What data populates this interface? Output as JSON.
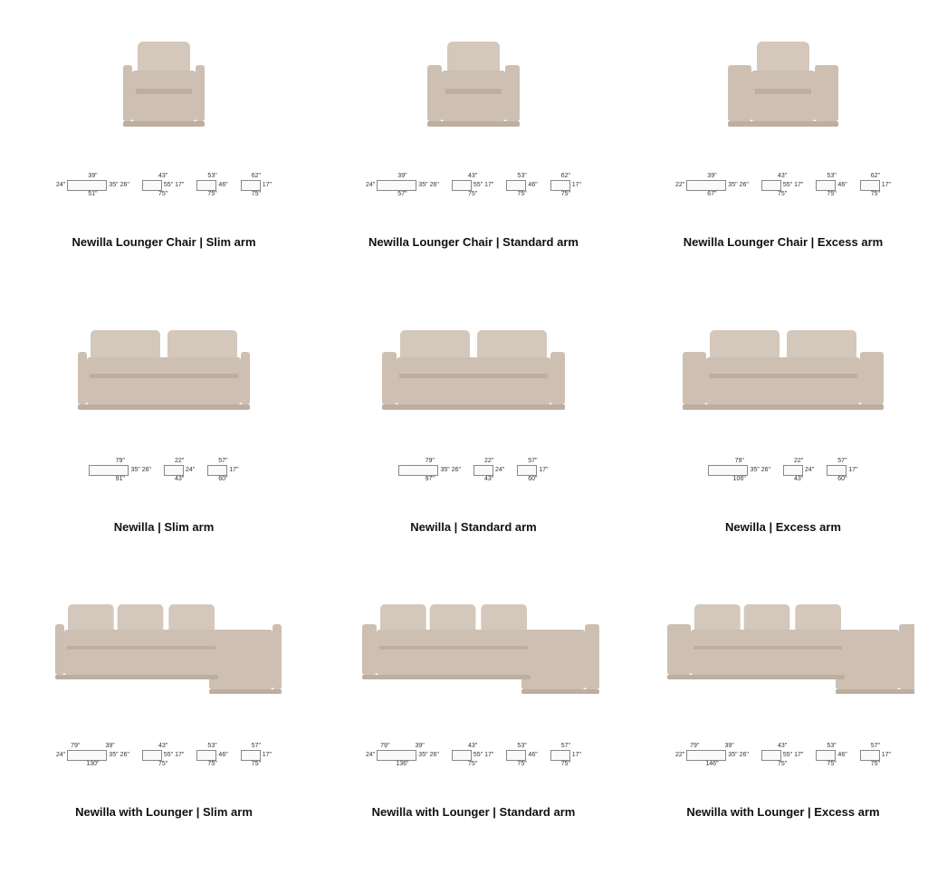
{
  "colors": {
    "sofa_body": "#cdbfb2",
    "sofa_shadow": "#bdaea0",
    "sofa_cushion": "#d4c7bb",
    "background": "#ffffff",
    "text": "#111111",
    "dim_text": "#333333",
    "dim_line": "#888888"
  },
  "layout": {
    "grid_cols": 3,
    "grid_rows": 3
  },
  "products": [
    {
      "title": "Newilla Lounger Chair | Slim arm",
      "kind": "chair",
      "arm": "slim",
      "dims": [
        {
          "top": "39\"",
          "left": "24\"",
          "right": "35\"",
          "bottom": "51\"",
          "extra": "26\""
        },
        {
          "top": "43\"",
          "right": "55\"",
          "left2": "",
          "bottom": "75\"",
          "left": "",
          "extra": "17\""
        },
        {
          "top": "53\"",
          "right": "46\"",
          "bottom": "75\""
        },
        {
          "top": "62\"",
          "right": "17\"",
          "bottom": "75\""
        }
      ]
    },
    {
      "title": "Newilla Lounger Chair | Standard arm",
      "kind": "chair",
      "arm": "standard",
      "dims": [
        {
          "top": "39\"",
          "left": "24\"",
          "right": "35\"",
          "bottom": "57\"",
          "extra": "26\""
        },
        {
          "top": "43\"",
          "right": "55\"",
          "bottom": "75\"",
          "extra": "17\""
        },
        {
          "top": "53\"",
          "right": "46\"",
          "bottom": "75\""
        },
        {
          "top": "62\"",
          "right": "17\"",
          "bottom": "75\""
        }
      ]
    },
    {
      "title": "Newilla Lounger Chair | Excess arm",
      "kind": "chair",
      "arm": "excess",
      "dims": [
        {
          "top": "39\"",
          "left": "22\"",
          "right": "35\"",
          "bottom": "67\"",
          "extra": "26\""
        },
        {
          "top": "43\"",
          "right": "55\"",
          "bottom": "75\"",
          "extra": "17\""
        },
        {
          "top": "53\"",
          "right": "46\"",
          "bottom": "75\""
        },
        {
          "top": "62\"",
          "right": "17\"",
          "bottom": "75\""
        }
      ]
    },
    {
      "title": "Newilla | Slim arm",
      "kind": "sofa",
      "arm": "slim",
      "dims": [
        {
          "top": "79\"",
          "right": "35\"",
          "bottom": "91\"",
          "extra": "26\""
        },
        {
          "top": "22\"",
          "right": "24\"",
          "bottom": "43\""
        },
        {
          "top": "57\"",
          "right": "17\"",
          "bottom": "60\""
        }
      ]
    },
    {
      "title": "Newilla | Standard arm",
      "kind": "sofa",
      "arm": "standard",
      "dims": [
        {
          "top": "79\"",
          "right": "35\"",
          "bottom": "97\"",
          "extra": "26\""
        },
        {
          "top": "22\"",
          "right": "24\"",
          "bottom": "43\""
        },
        {
          "top": "57\"",
          "right": "17\"",
          "bottom": "60\""
        }
      ]
    },
    {
      "title": "Newilla | Excess arm",
      "kind": "sofa",
      "arm": "excess",
      "dims": [
        {
          "top": "79\"",
          "right": "35\"",
          "bottom": "106\"",
          "extra": "26\""
        },
        {
          "top": "22\"",
          "right": "24\"",
          "bottom": "43\""
        },
        {
          "top": "57\"",
          "right": "17\"",
          "bottom": "60\""
        }
      ]
    },
    {
      "title": "Newilla with Lounger | Slim arm",
      "kind": "lounger",
      "arm": "slim",
      "dims": [
        {
          "top": "79\"",
          "top2": "39\"",
          "left": "24\"",
          "right": "35\"",
          "bottom": "130\"",
          "extra": "26\""
        },
        {
          "top": "43\"",
          "right": "55\"",
          "bottom": "75\"",
          "extra": "17\""
        },
        {
          "top": "53\"",
          "right": "46\"",
          "bottom": "75\""
        },
        {
          "top": "57\"",
          "right": "17\"",
          "bottom": "75\""
        }
      ]
    },
    {
      "title": "Newilla with Lounger | Standard arm",
      "kind": "lounger",
      "arm": "standard",
      "dims": [
        {
          "top": "79\"",
          "top2": "39\"",
          "left": "24\"",
          "right": "35\"",
          "bottom": "136\"",
          "extra": "26\""
        },
        {
          "top": "43\"",
          "right": "55\"",
          "bottom": "75\"",
          "extra": "17\""
        },
        {
          "top": "53\"",
          "right": "46\"",
          "bottom": "75\""
        },
        {
          "top": "57\"",
          "right": "17\"",
          "bottom": "75\""
        }
      ]
    },
    {
      "title": "Newilla with Lounger | Excess arm",
      "kind": "lounger",
      "arm": "excess",
      "dims": [
        {
          "top": "79\"",
          "top2": "39\"",
          "left": "22\"",
          "right": "35\"",
          "bottom": "146\"",
          "extra": "26\""
        },
        {
          "top": "43\"",
          "right": "55\"",
          "bottom": "75\"",
          "extra": "17\""
        },
        {
          "top": "53\"",
          "right": "46\"",
          "bottom": "75\""
        },
        {
          "top": "57\"",
          "right": "17\"",
          "bottom": "75\""
        }
      ]
    }
  ]
}
